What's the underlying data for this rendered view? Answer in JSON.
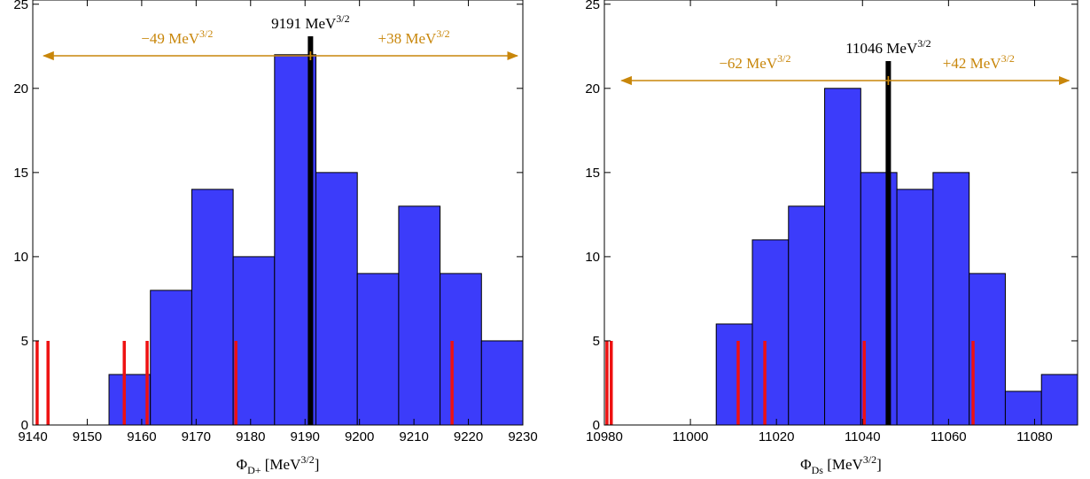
{
  "chart_data": [
    {
      "type": "histogram",
      "bins": [
        9154,
        9161.6,
        9169.2,
        9176.8,
        9184.4,
        9192,
        9199.6,
        9207.2,
        9214.8,
        9222.4,
        9230
      ],
      "values": [
        3,
        8,
        14,
        10,
        22,
        15,
        9,
        13,
        9,
        5
      ],
      "color": "#3c3cfa",
      "xlim": [
        9140,
        9230
      ],
      "xticks": [
        9140,
        9150,
        9160,
        9170,
        9180,
        9190,
        9200,
        9210,
        9220,
        9230
      ],
      "ylim": [
        0,
        25.25
      ],
      "yticks": [
        0,
        5,
        10,
        15,
        20,
        25
      ],
      "xlabel": [
        "Φ",
        "D+",
        " [MeV",
        "3/2",
        "]"
      ],
      "central_value": 9191,
      "central_label": [
        "9191 MeV",
        "3/2"
      ],
      "arrows": [
        {
          "value": 9142,
          "label": [
            "−49 MeV",
            "3/2"
          ]
        },
        {
          "value": 9229,
          "label": [
            "+38 MeV",
            "3/2"
          ]
        }
      ],
      "arrow_color": "#c8860a",
      "markers": [
        9140.8,
        9142.8,
        9156.8,
        9161.0,
        9177.3,
        9217.0
      ],
      "marker_color": "#ee1111"
    },
    {
      "type": "histogram",
      "bins": [
        11006,
        11014.4,
        11022.8,
        11031.2,
        11039.6,
        11048,
        11056.4,
        11064.8,
        11073.2,
        11081.6,
        11090
      ],
      "values": [
        6,
        11,
        13,
        20,
        15,
        14,
        15,
        9,
        2,
        3
      ],
      "color": "#3c3cfa",
      "xlim": [
        10980,
        11090
      ],
      "xticks": [
        10980,
        11000,
        11020,
        11040,
        11060,
        11080
      ],
      "ylim": [
        0,
        25.25
      ],
      "yticks": [
        0,
        5,
        10,
        15,
        20,
        25
      ],
      "xlabel": [
        "Φ",
        "Ds",
        " [MeV",
        "3/2",
        "]"
      ],
      "central_value": 11046,
      "central_label": [
        "11046 MeV",
        "3/2"
      ],
      "arrows": [
        {
          "value": 10984,
          "label": [
            "−62 MeV",
            "3/2"
          ]
        },
        {
          "value": 11088,
          "label": [
            "+42 MeV",
            "3/2"
          ]
        }
      ],
      "arrow_color": "#c8860a",
      "markers": [
        10980.6,
        10981.6,
        11011.1,
        11017.3,
        11040.4,
        11065.7
      ],
      "marker_color": "#ee1111"
    }
  ]
}
